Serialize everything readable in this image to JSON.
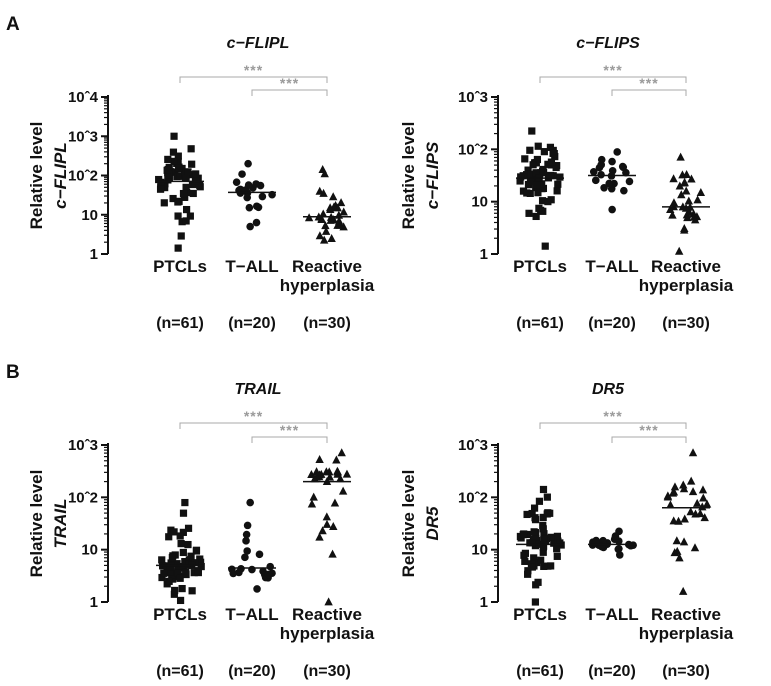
{
  "panel_letters": [
    "A",
    "B"
  ],
  "chart_data": [
    {
      "type": "scatter",
      "title": "c−FLIPL",
      "ylabel_line1": "Relative   level",
      "ylabel_line2": "c−FLIPL",
      "yscale": "log",
      "y_tick_labels": [
        "1",
        "10",
        "10ˆ2",
        "10ˆ3",
        "10ˆ4"
      ],
      "categories": [
        "PTCLs",
        "T−ALL",
        "Reactive\nhyperplasia"
      ],
      "n_labels": [
        "(n=61)",
        "(n=20)",
        "(n=30)"
      ],
      "markers": [
        "square",
        "circle",
        "triangle"
      ],
      "median_exponents": [
        1.85,
        1.57,
        0.95
      ],
      "spread_exponents": [
        [
          0.15,
          3.0
        ],
        [
          0.7,
          2.3
        ],
        [
          0.35,
          2.15
        ]
      ],
      "group_sizes": [
        61,
        20,
        30
      ],
      "significance": [
        {
          "from": 0,
          "to": 2,
          "label": "***"
        },
        {
          "from": 1,
          "to": 2,
          "label": "***"
        }
      ]
    },
    {
      "type": "scatter",
      "title": "c−FLIPS",
      "ylabel_line1": "Relative   level",
      "ylabel_line2": "c−FLIPS",
      "yscale": "log",
      "y_tick_labels": [
        "1",
        "10",
        "10ˆ2",
        "10ˆ3"
      ],
      "categories": [
        "PTCLs",
        "T−ALL",
        "Reactive\nhyperplasia"
      ],
      "n_labels": [
        "(n=61)",
        "(n=20)",
        "(n=30)"
      ],
      "markers": [
        "square",
        "circle",
        "triangle"
      ],
      "median_exponents": [
        1.45,
        1.5,
        0.9
      ],
      "spread_exponents": [
        [
          0.15,
          2.35
        ],
        [
          0.85,
          1.95
        ],
        [
          0.05,
          1.85
        ]
      ],
      "group_sizes": [
        61,
        20,
        30
      ],
      "significance": [
        {
          "from": 0,
          "to": 2,
          "label": "***"
        },
        {
          "from": 1,
          "to": 2,
          "label": "***"
        }
      ]
    },
    {
      "type": "scatter",
      "title": "TRAIL",
      "ylabel_line1": "Relative   level",
      "ylabel_line2": "TRAIL",
      "yscale": "log",
      "y_tick_labels": [
        "1",
        "10",
        "10ˆ2",
        "10ˆ3"
      ],
      "categories": [
        "PTCLs",
        "T−ALL",
        "Reactive\nhyperplasia"
      ],
      "n_labels": [
        "(n=61)",
        "(n=20)",
        "(n=30)"
      ],
      "markers": [
        "square",
        "circle",
        "triangle"
      ],
      "median_exponents": [
        0.7,
        0.65,
        2.3
      ],
      "spread_exponents": [
        [
          0.03,
          1.9
        ],
        [
          0.25,
          1.9
        ],
        [
          0.0,
          2.85
        ]
      ],
      "group_sizes": [
        61,
        20,
        30
      ],
      "significance": [
        {
          "from": 0,
          "to": 2,
          "label": "***"
        },
        {
          "from": 1,
          "to": 2,
          "label": "***"
        }
      ]
    },
    {
      "type": "scatter",
      "title": "DR5",
      "ylabel_line1": "Relative   level",
      "ylabel_line2": "DR5",
      "yscale": "log",
      "y_tick_labels": [
        "1",
        "10",
        "10ˆ2",
        "10ˆ3"
      ],
      "categories": [
        "PTCLs",
        "T−ALL",
        "Reactive\nhyperplasia"
      ],
      "n_labels": [
        "(n=61)",
        "(n=20)",
        "(n=30)"
      ],
      "markers": [
        "square",
        "circle",
        "triangle"
      ],
      "median_exponents": [
        1.1,
        1.1,
        1.8
      ],
      "spread_exponents": [
        [
          0.0,
          2.15
        ],
        [
          0.9,
          1.35
        ],
        [
          0.2,
          2.85
        ]
      ],
      "group_sizes": [
        61,
        20,
        30
      ],
      "significance": [
        {
          "from": 0,
          "to": 2,
          "label": "***"
        },
        {
          "from": 1,
          "to": 2,
          "label": "***"
        }
      ]
    }
  ]
}
